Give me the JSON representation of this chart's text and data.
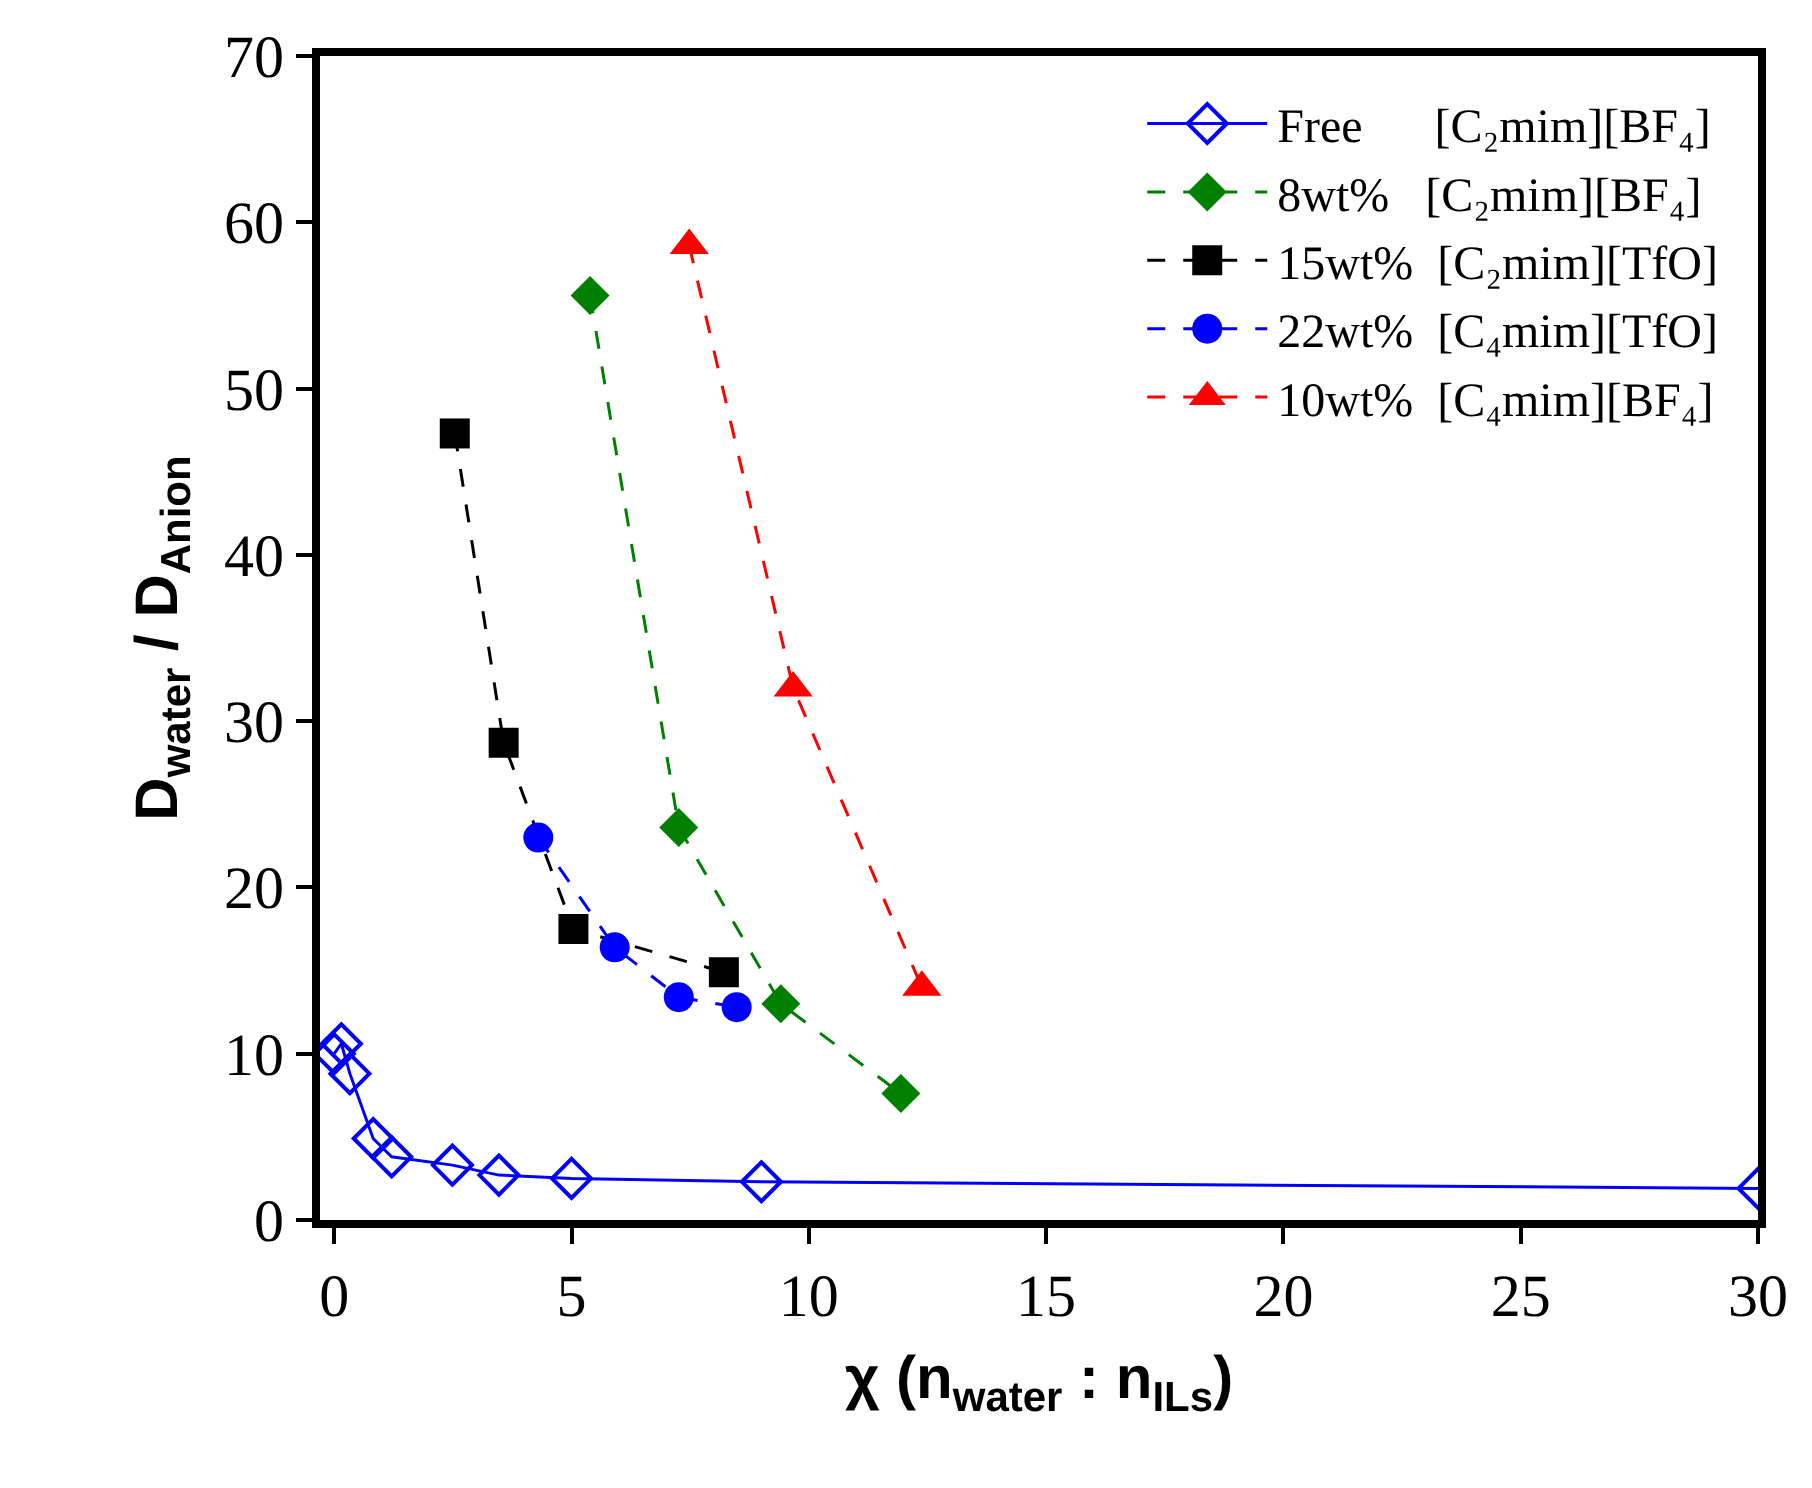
{
  "chart_data": {
    "type": "line",
    "xlabel": "χ (n$_{water}$ : n$_{ILs}$)",
    "ylabel": "D$_{water}$ / D$_{Anion}$",
    "xlim": [
      -0.3,
      30
    ],
    "xticks": [
      0,
      5,
      10,
      15,
      20,
      25,
      30
    ],
    "ylim": [
      0,
      70
    ],
    "yticks": [
      0,
      10,
      20,
      30,
      40,
      50,
      60,
      70
    ],
    "grid": false,
    "legend": "top right",
    "series": [
      {
        "name": "Free      [C₂mim][BF₄]",
        "color": "#0000ff",
        "marker": "diamond",
        "line_style": "solid",
        "x": [
          0,
          0.15,
          0.33,
          0.82,
          1.21,
          2.49,
          3.47,
          5.0,
          9.0,
          30
        ],
        "values": [
          10.0,
          10.6,
          8.8,
          4.9,
          3.8,
          3.3,
          2.7,
          2.5,
          2.3,
          1.9
        ]
      },
      {
        "name": "8wt%   [C₂mim][BF₄]",
        "color": "#008000",
        "marker": "diamond",
        "line_style": "dashed",
        "x": [
          5.39,
          7.26,
          9.41,
          11.94
        ],
        "values": [
          55.6,
          23.6,
          13.0,
          7.6
        ]
      },
      {
        "name": "15wt%  [C₂mim][TfO]",
        "color": "#000000",
        "marker": "square",
        "line_style": "dashed",
        "x": [
          2.54,
          3.57,
          5.04,
          8.21
        ],
        "values": [
          47.3,
          28.7,
          17.5,
          14.9
        ]
      },
      {
        "name": "22wt%  [C₄mim][TfO]",
        "color": "#0000ff",
        "marker": "circle",
        "line_style": "dashed",
        "x": [
          4.3,
          5.91,
          7.26,
          8.48
        ],
        "values": [
          23.0,
          16.4,
          13.4,
          12.8
        ]
      },
      {
        "name": "10wt%  [C₄mim][BF₄]",
        "color": "#ff0000",
        "marker": "triangle",
        "line_style": "dashed",
        "x": [
          7.48,
          9.67,
          12.38
        ],
        "values": [
          58.6,
          32.0,
          14.0
        ]
      }
    ]
  }
}
